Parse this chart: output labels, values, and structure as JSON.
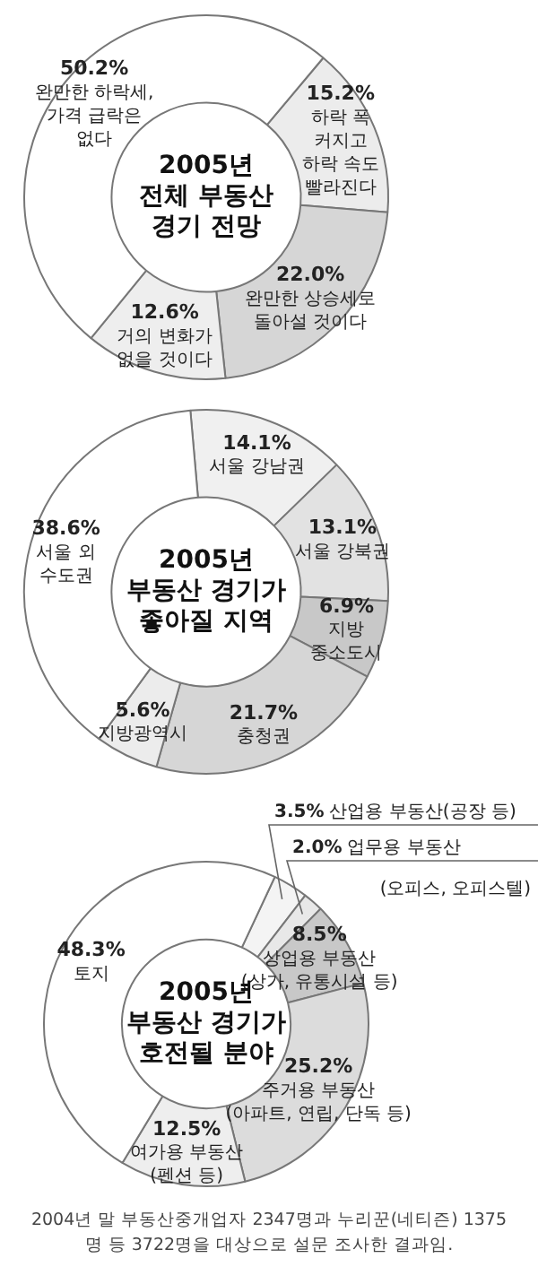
{
  "chart_data": [
    {
      "type": "donut",
      "title": "2005년\n전체 부동산\n경기 전망",
      "categories": [
        "하락 폭\n커지고\n하락 속도\n빨라진다",
        "완만한 상승세로\n돌아설 것이다",
        "거의 변화가\n없을 것이다",
        "완만한 하락세,\n가격 급락은\n없다"
      ],
      "values": [
        15.2,
        22.0,
        12.6,
        50.2
      ],
      "value_labels": [
        "15.2%",
        "22.0%",
        "12.6%",
        "50.2%"
      ],
      "colors": [
        "#ececec",
        "#d6d6d6",
        "#eeeeee",
        "#ffffff"
      ],
      "legend": false
    },
    {
      "type": "donut",
      "title": "2005년\n부동산 경기가\n좋아질 지역",
      "categories": [
        "서울 강남권",
        "서울 강북권",
        "지방\n중소도시",
        "충청권",
        "지방광역시",
        "서울 외\n수도권"
      ],
      "values": [
        14.1,
        13.1,
        6.9,
        21.7,
        5.6,
        38.6
      ],
      "value_labels": [
        "14.1%",
        "13.1%",
        "6.9%",
        "21.7%",
        "5.6%",
        "38.6%"
      ],
      "colors": [
        "#f0f0f0",
        "#e2e2e2",
        "#c8c8c8",
        "#d6d6d6",
        "#ececec",
        "#ffffff"
      ],
      "legend": false
    },
    {
      "type": "donut",
      "title": "2005년\n부동산 경기가\n호전될 분야",
      "categories": [
        "산업용 부동산(공장 등)",
        "업무용 부동산\n(오피스, 오피스텔)",
        "상업용 부동산\n(상가, 유통시설 등)",
        "주거용 부동산\n(아파트, 연립, 단독 등)",
        "여가용 부동산\n(펜션 등)",
        "토지"
      ],
      "values": [
        3.5,
        2.0,
        8.5,
        25.2,
        12.5,
        48.3
      ],
      "value_labels": [
        "3.5%",
        "2.0%",
        "8.5%",
        "25.2%",
        "12.5%",
        "48.3%"
      ],
      "colors": [
        "#f4f4f4",
        "#e8e8e8",
        "#c8c8c8",
        "#dcdcdc",
        "#eeeeee",
        "#ffffff"
      ],
      "legend": false,
      "annotations": [
        "2004년 말 부동산중개업자 2347명과 누리꾼(네티즌) 1375명 등 3722명을 대상으로 설문 조사한 결과임."
      ]
    }
  ]
}
